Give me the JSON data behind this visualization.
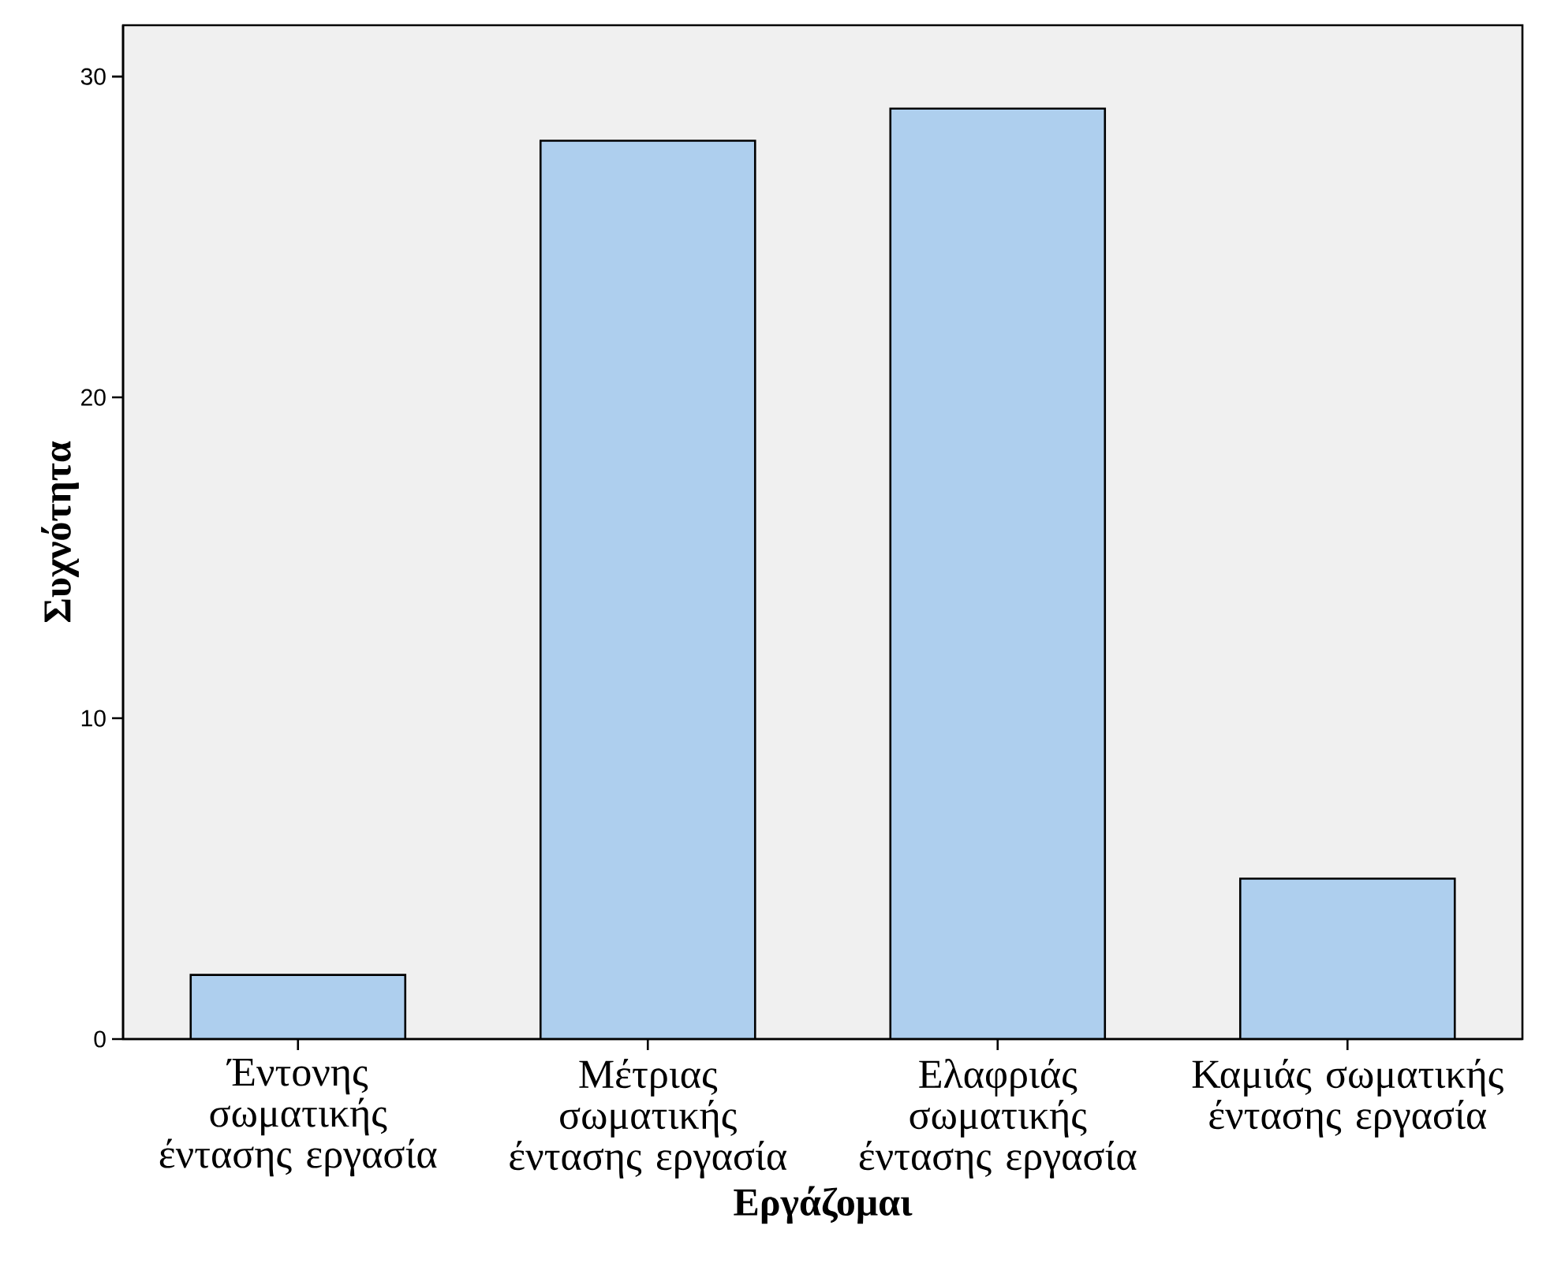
{
  "chart_data": {
    "type": "bar",
    "xlabel": "Εργάζομαι",
    "ylabel": "Συχνότητα",
    "categories": [
      "Έντονης σωματικής έντασης εργασία",
      "Μέτριας σωματικής έντασης εργασία",
      "Ελαφριάς σωματικής έντασης εργασία",
      "Καμιάς σωματικής έντασης εργασία"
    ],
    "values": [
      2,
      28,
      29,
      5
    ],
    "color": "#aecfee",
    "ylim": [
      0,
      31.6
    ],
    "yticks": [
      0,
      10,
      20,
      30
    ]
  }
}
